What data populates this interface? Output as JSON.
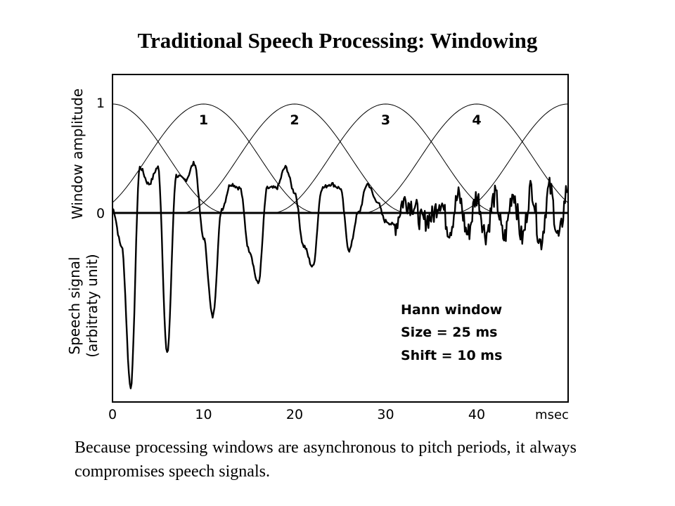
{
  "title": "Traditional Speech Processing: Windowing",
  "caption": "Because processing windows are asynchronous to pitch periods, it always compromises speech signals.",
  "chart_data": {
    "type": "line",
    "xlabel": "msec",
    "x_ticks": [
      0,
      10,
      20,
      30,
      40
    ],
    "xlim": [
      0,
      50
    ],
    "y_axis_top_label": "Window amplitude",
    "y_axis_bottom_label_line1": "Speech signal",
    "y_axis_bottom_label_line2": "(arbitraty unit)",
    "y_ticks": [
      "1",
      "0"
    ],
    "window_labels": [
      "1",
      "2",
      "3",
      "4"
    ],
    "window_centers_ms": [
      10,
      20,
      30,
      40
    ],
    "windows": {
      "type": "Hann",
      "size_ms": 25,
      "shift_ms": 10,
      "centers_ms": [
        0,
        10,
        20,
        30,
        40,
        50
      ],
      "peak": 1
    },
    "annotation": [
      "Hann window",
      "Size = 25 ms",
      "Shift = 10 ms"
    ],
    "speech_signal": {
      "name": "",
      "x_ms": [
        0,
        1,
        2,
        3,
        4,
        5,
        6,
        7,
        8,
        9,
        10,
        11,
        12,
        13,
        14,
        15,
        16,
        17,
        18,
        19,
        20,
        21,
        22,
        23,
        24,
        25,
        26,
        27,
        28,
        29,
        30,
        31,
        32,
        33,
        34,
        35,
        36,
        37,
        38,
        39,
        40,
        41,
        42,
        43,
        44,
        45,
        46,
        47,
        48,
        49,
        50
      ],
      "y": [
        0.05,
        -0.4,
        -2.1,
        0.55,
        0.35,
        0.55,
        -1.7,
        0.45,
        0.4,
        0.6,
        -0.3,
        -1.25,
        0.05,
        0.35,
        0.3,
        -0.45,
        -0.85,
        0.3,
        0.3,
        0.55,
        0.25,
        -0.4,
        -0.65,
        0.3,
        0.35,
        0.3,
        -0.45,
        0.0,
        0.35,
        0.15,
        -0.1,
        -0.15,
        0.15,
        0.1,
        -0.1,
        -0.05,
        0.15,
        -0.2,
        0.2,
        -0.25,
        0.2,
        -0.25,
        0.2,
        -0.3,
        0.25,
        -0.3,
        0.3,
        -0.35,
        0.3,
        -0.3,
        0.3
      ]
    }
  }
}
